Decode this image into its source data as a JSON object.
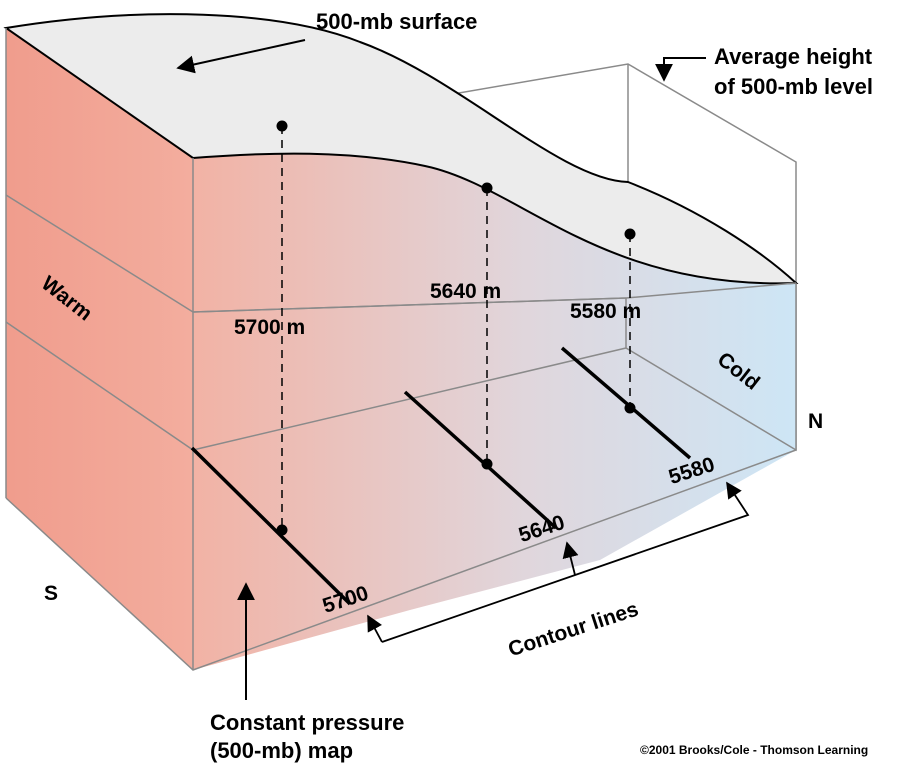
{
  "title": "500-mb surface",
  "average_height_label": [
    "Average height",
    "of 500-mb level"
  ],
  "heights": [
    "5700 m",
    "5640 m",
    "5580 m"
  ],
  "contours": [
    "5700",
    "5640",
    "5580"
  ],
  "contour_lines_label": "Contour lines",
  "warm_label": "Warm",
  "cold_label": "Cold",
  "south_label": "S",
  "north_label": "N",
  "map_label": [
    "Constant pressure",
    "(500-mb) map"
  ],
  "credit": "©2001 Brooks/Cole - Thomson Learning",
  "colors": {
    "warm": "#f3a898",
    "cold": "#cfe6f6",
    "surface": "#ececec",
    "box_lines": "#8a8a8a"
  }
}
